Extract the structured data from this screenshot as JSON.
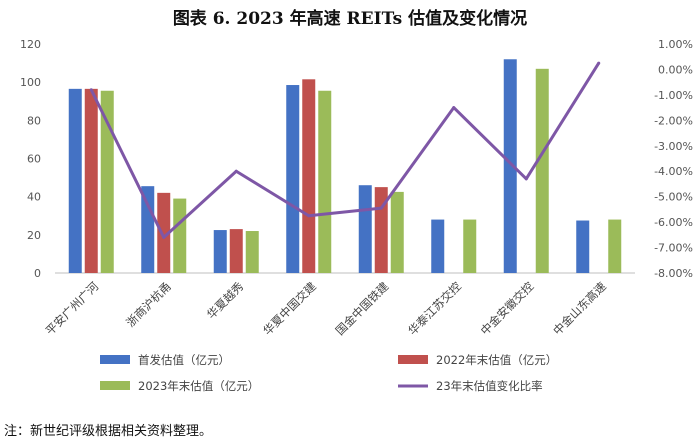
{
  "title": "图表 6. 2023 年高速 REITs 估值及变化情况",
  "note": "注：新世纪评级根据相关资料整理。",
  "chart_data": {
    "type": "bar",
    "title": "图表 6. 2023 年高速 REITs 估值及变化情况",
    "categories": [
      "平安广州广河",
      "浙商沪杭甬",
      "华夏越秀",
      "华夏中国交建",
      "国金中国铁建",
      "华泰江苏交控",
      "中金安徽交控",
      "中金山东高速"
    ],
    "series": [
      {
        "name": "首发估值（亿元）",
        "type": "bar",
        "axis": "left",
        "color": "#4472C4",
        "values": [
          96.5,
          45.5,
          22.5,
          98.5,
          46,
          28,
          112,
          27.5
        ]
      },
      {
        "name": "2022年末估值（亿元）",
        "type": "bar",
        "axis": "left",
        "color": "#C0504D",
        "values": [
          96.5,
          42,
          23,
          101.5,
          45,
          null,
          null,
          null
        ]
      },
      {
        "name": "2023年末估值（亿元）",
        "type": "bar",
        "axis": "left",
        "color": "#9BBB59",
        "values": [
          95.5,
          39,
          22,
          95.5,
          42.5,
          28,
          107,
          28
        ]
      },
      {
        "name": "23年末估值变化比率",
        "type": "line",
        "axis": "right",
        "color": "#7E57A6",
        "values": [
          -0.8,
          -6.6,
          -4.0,
          -5.75,
          -5.45,
          -1.5,
          -4.3,
          0.25
        ]
      }
    ],
    "left_axis": {
      "ylim": [
        0,
        120
      ],
      "ticks": [
        "0",
        "20",
        "40",
        "60",
        "80",
        "100",
        "120"
      ]
    },
    "right_axis": {
      "ylim": [
        -8,
        1
      ],
      "ticks": [
        "-8.00%",
        "-7.00%",
        "-6.00%",
        "-5.00%",
        "-4.00%",
        "-3.00%",
        "-2.00%",
        "-1.00%",
        "0.00%",
        "1.00%"
      ]
    },
    "grid": false,
    "legend_position": "bottom"
  }
}
